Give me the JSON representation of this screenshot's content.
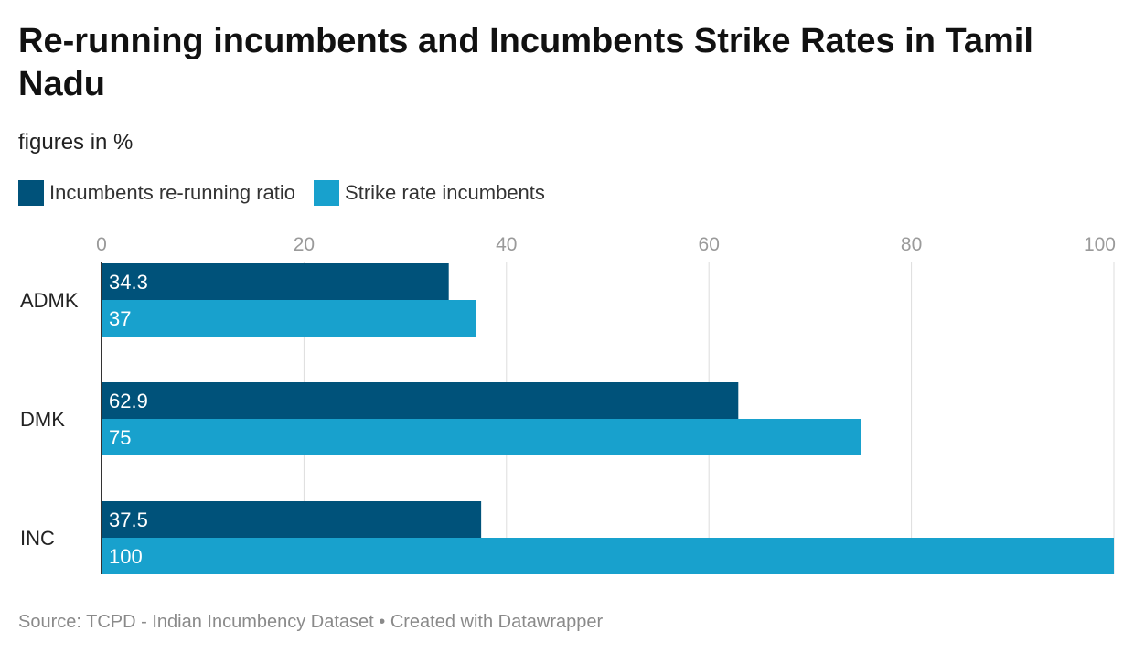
{
  "header": {
    "title": "Re-running incumbents and Incumbents Strike Rates in Tamil Nadu",
    "subtitle": "figures in %"
  },
  "footer": {
    "source": "Source: TCPD - Indian Incumbency Dataset • Created with Datawrapper"
  },
  "colors": {
    "series1": "#00527a",
    "series2": "#18a1cd",
    "grid": "#dddddd",
    "axis": "#333333"
  },
  "chart_data": {
    "type": "bar",
    "orientation": "horizontal",
    "title": "Re-running incumbents and Incumbents Strike Rates in Tamil Nadu",
    "subtitle": "figures in %",
    "categories": [
      "ADMK",
      "DMK",
      "INC"
    ],
    "series": [
      {
        "name": "Incumbents re-running ratio",
        "values": [
          34.3,
          62.9,
          37.5
        ],
        "labels": [
          "34.3",
          "62.9",
          "37.5"
        ]
      },
      {
        "name": "Strike rate incumbents",
        "values": [
          37,
          75,
          100
        ],
        "labels": [
          "37",
          "75",
          "100"
        ]
      }
    ],
    "xlim": [
      0,
      100
    ],
    "xticks": [
      0,
      20,
      40,
      60,
      80,
      100
    ],
    "xtick_labels": [
      "0",
      "20",
      "40",
      "60",
      "80",
      "100"
    ],
    "grid": true,
    "legend_position": "top-left",
    "xlabel": "",
    "ylabel": ""
  }
}
